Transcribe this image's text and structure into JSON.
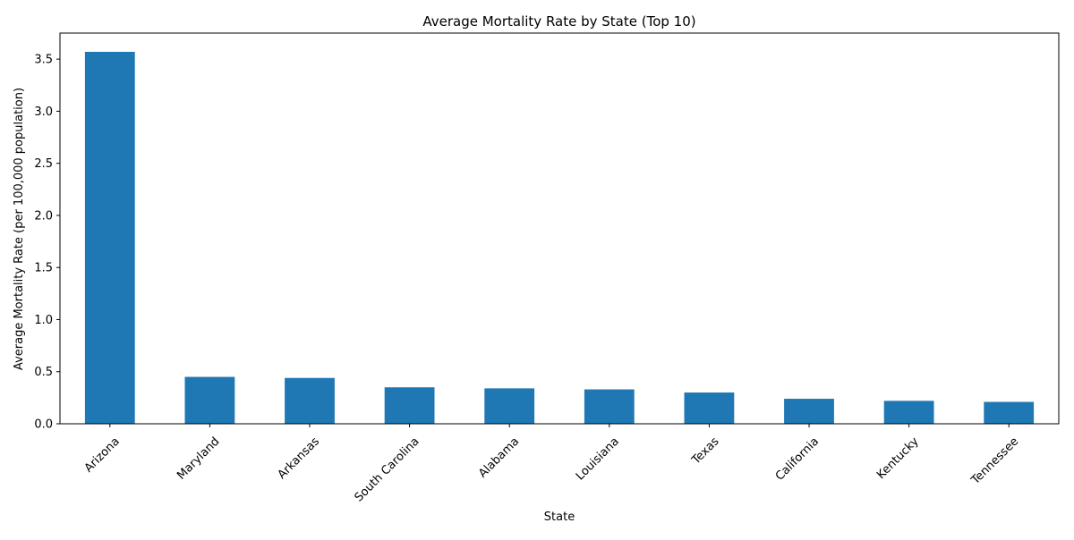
{
  "chart_data": {
    "type": "bar",
    "title": "Average Mortality Rate by State (Top 10)",
    "xlabel": "State",
    "ylabel": "Average Mortality Rate (per 100,000 population)",
    "categories": [
      "Arizona",
      "Maryland",
      "Arkansas",
      "South Carolina",
      "Alabama",
      "Louisiana",
      "Texas",
      "California",
      "Kentucky",
      "Tennessee"
    ],
    "values": [
      3.57,
      0.45,
      0.44,
      0.35,
      0.34,
      0.33,
      0.3,
      0.24,
      0.22,
      0.21
    ],
    "ylim": [
      0,
      3.75
    ],
    "yticks": [
      0.0,
      0.5,
      1.0,
      1.5,
      2.0,
      2.5,
      3.0,
      3.5
    ],
    "ytick_labels": [
      "0.0",
      "0.5",
      "1.0",
      "1.5",
      "2.0",
      "2.5",
      "3.0",
      "3.5"
    ],
    "bar_color": "#1f77b4",
    "grid": false,
    "legend": false
  }
}
